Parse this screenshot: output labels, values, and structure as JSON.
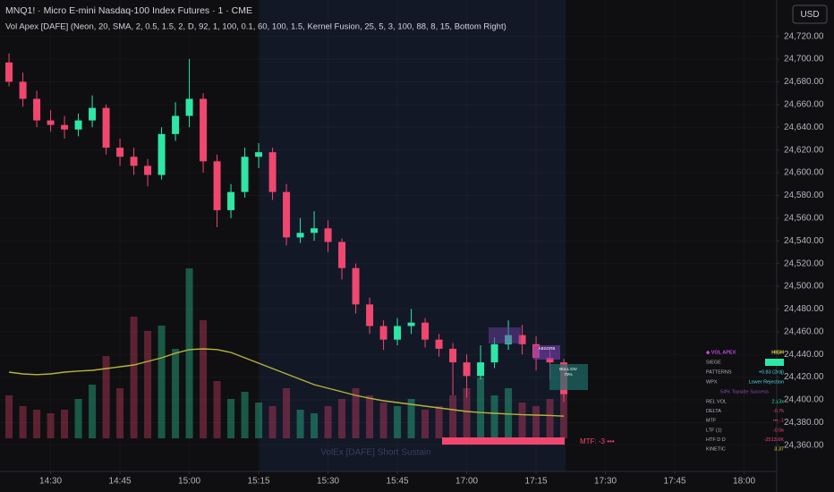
{
  "header": {
    "symbol_line": "MNQ1! · Micro E-mini Nasdaq-100 Index Futures · 1 · CME",
    "indicator_line": "Vol Apex [DAFE] (Neon, 20, SMA, 2, 0.5, 1.5, 2, D, 92, 1, 100, 0.1, 60, 100, 1.5, Kernel Fusion, 25, 5, 3, 100, 88, 8, 15, Bottom Right)",
    "currency": "USD"
  },
  "chart_data": {
    "type": "candlestick",
    "up_color": "#2ee6a6",
    "down_color": "#f0476f",
    "grid": true,
    "ylim": [
      24337,
      24752
    ],
    "yticks": [
      {
        "value": 24360,
        "label": "24,360.00"
      },
      {
        "value": 24380,
        "label": "24,380.00"
      },
      {
        "value": 24400,
        "label": "24,400.00"
      },
      {
        "value": 24420,
        "label": "24,420.00"
      },
      {
        "value": 24440,
        "label": "24,440.00"
      },
      {
        "value": 24460,
        "label": "24,460.00"
      },
      {
        "value": 24480,
        "label": "24,480.00"
      },
      {
        "value": 24500,
        "label": "24,500.00"
      },
      {
        "value": 24520,
        "label": "24,520.00"
      },
      {
        "value": 24540,
        "label": "24,540.00"
      },
      {
        "value": 24560,
        "label": "24,560.00"
      },
      {
        "value": 24580,
        "label": "24,580.00"
      },
      {
        "value": 24600,
        "label": "24,600.00"
      },
      {
        "value": 24620,
        "label": "24,620.00"
      },
      {
        "value": 24640,
        "label": "24,640.00"
      },
      {
        "value": 24660,
        "label": "24,660.00"
      },
      {
        "value": 24680,
        "label": "24,680.00"
      },
      {
        "value": 24700,
        "label": "24,700.00"
      },
      {
        "value": 24720,
        "label": "24,720.00"
      }
    ],
    "xlim": [
      -0.65,
      55.35
    ],
    "xticks": [
      {
        "value": 3,
        "label": "14:30"
      },
      {
        "value": 8,
        "label": "14:45"
      },
      {
        "value": 13,
        "label": "15:00"
      },
      {
        "value": 18,
        "label": "15:15"
      },
      {
        "value": 23,
        "label": "15:30"
      },
      {
        "value": 28,
        "label": "15:45"
      },
      {
        "value": 33,
        "label": "17:00"
      },
      {
        "value": 38,
        "label": "17:15"
      },
      {
        "value": 43,
        "label": "17:30"
      },
      {
        "value": 48,
        "label": "17:45"
      },
      {
        "value": 53,
        "label": "18:00"
      }
    ],
    "open": [
      24697,
      24680,
      24665,
      24646,
      24642,
      24638,
      24646,
      24657,
      24622,
      24614,
      24606,
      24598,
      24634,
      24650,
      24665,
      24610,
      24567,
      24583,
      24614,
      24618,
      24583,
      24543,
      24547,
      24551,
      24539,
      24516,
      24484,
      24465,
      24453,
      24465,
      24468,
      24453,
      24445,
      24433,
      24421,
      24433,
      24449,
      24457,
      24449,
      24437,
      24433
    ],
    "high": [
      24705,
      24688,
      24672,
      24655,
      24650,
      24652,
      24668,
      24660,
      24630,
      24622,
      24612,
      24640,
      24662,
      24700,
      24670,
      24616,
      24590,
      24622,
      24626,
      24622,
      24590,
      24560,
      24566,
      24558,
      24542,
      24520,
      24490,
      24470,
      24472,
      24480,
      24472,
      24458,
      24450,
      24440,
      24448,
      24455,
      24470,
      24466,
      24456,
      24444,
      24436
    ],
    "low": [
      24676,
      24658,
      24640,
      24636,
      24630,
      24632,
      24640,
      24616,
      24606,
      24598,
      24588,
      24594,
      24628,
      24640,
      24600,
      24552,
      24560,
      24578,
      24604,
      24576,
      24536,
      24538,
      24540,
      24530,
      24506,
      24476,
      24458,
      24444,
      24448,
      24458,
      24446,
      24438,
      24404,
      24402,
      24418,
      24428,
      24444,
      24440,
      24426,
      24418,
      24398
    ],
    "close": [
      24680,
      24665,
      24646,
      24642,
      24638,
      24646,
      24657,
      24622,
      24614,
      24606,
      24598,
      24634,
      24650,
      24665,
      24610,
      24567,
      24583,
      24614,
      24618,
      24583,
      24543,
      24547,
      24551,
      24539,
      24516,
      24484,
      24465,
      24453,
      24465,
      24468,
      24453,
      24445,
      24433,
      24421,
      24433,
      24449,
      24457,
      24449,
      24437,
      24433,
      24405
    ],
    "volume": {
      "lim": [
        0,
        600
      ],
      "values": [
        120,
        90,
        80,
        70,
        80,
        110,
        150,
        230,
        140,
        340,
        300,
        315,
        250,
        475,
        330,
        160,
        110,
        130,
        100,
        90,
        140,
        80,
        70,
        90,
        110,
        140,
        120,
        100,
        90,
        110,
        80,
        90,
        120,
        140,
        170,
        120,
        140,
        100,
        90,
        110,
        150
      ]
    },
    "volume_ma": {
      "color": "#b5b33a",
      "values": [
        185,
        180,
        178,
        180,
        185,
        188,
        190,
        195,
        200,
        205,
        215,
        225,
        238,
        248,
        250,
        248,
        240,
        225,
        210,
        195,
        180,
        165,
        150,
        140,
        130,
        120,
        112,
        105,
        100,
        95,
        90,
        85,
        80,
        75,
        72,
        70,
        68,
        66,
        65,
        64,
        62
      ]
    }
  },
  "annotations": {
    "absorb": "ABSORB",
    "bull_div": "BULL DIV",
    "bull_div_pct": "70%",
    "mtf": "MTF: -3 •••",
    "watermark": "VolEx [DAFE] Short Sustain"
  },
  "panel": {
    "title": "◆ VOL APEX",
    "status": "HIGH",
    "siege": "SIEGE",
    "note": "54% Topside Success",
    "rows": [
      {
        "label": "PATTERNS",
        "value": "+0.83 (2rdj)",
        "color": "#4fd6e8"
      },
      {
        "label": "WPX",
        "value": "Lower Rejection",
        "color": "#4fd6e8"
      },
      {
        "label": "REL VOL",
        "value": "2.13x",
        "color": "#2ee6a6"
      },
      {
        "label": "DELTA",
        "value": "-0.7k",
        "color": "#f0476f"
      },
      {
        "label": "MTF",
        "value": "••• -1",
        "color": "#f0476f"
      },
      {
        "label": "LTF (1)",
        "value": "-0.5k",
        "color": "#f0476f"
      },
      {
        "label": "HTF D D",
        "value": "-2513.6K",
        "color": "#f0476f"
      },
      {
        "label": "KINETIC",
        "value": "3.37",
        "color": "#e8e24a"
      }
    ]
  }
}
